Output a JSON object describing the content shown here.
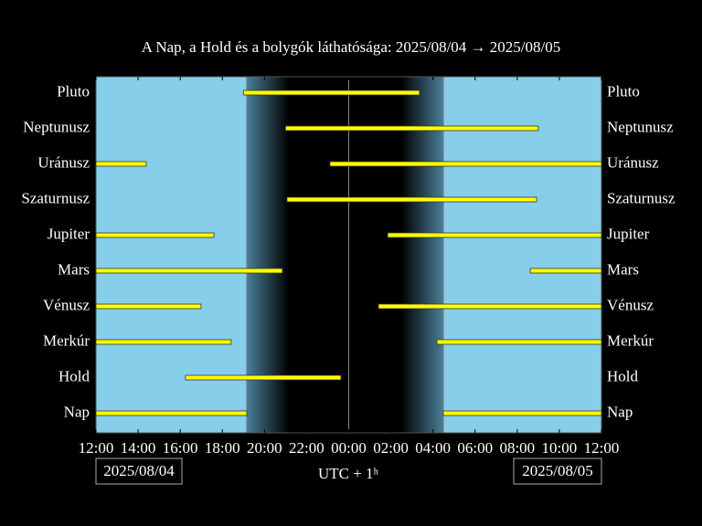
{
  "chart_data": {
    "type": "visibility",
    "title": "A Nap, a Hold és a bolygók láthatósága: 2025/08/04 → 2025/08/05",
    "xlabel": "UTC + 1ʰ",
    "date_left": "2025/08/04",
    "date_right": "2025/08/05",
    "xlim": [
      12,
      36
    ],
    "xticks": [
      {
        "value": 12,
        "label": "12:00"
      },
      {
        "value": 14,
        "label": "14:00"
      },
      {
        "value": 16,
        "label": "16:00"
      },
      {
        "value": 18,
        "label": "18:00"
      },
      {
        "value": 20,
        "label": "20:00"
      },
      {
        "value": 22,
        "label": "22:00"
      },
      {
        "value": 24,
        "label": "00:00"
      },
      {
        "value": 26,
        "label": "02:00"
      },
      {
        "value": 28,
        "label": "04:00"
      },
      {
        "value": 30,
        "label": "06:00"
      },
      {
        "value": 32,
        "label": "08:00"
      },
      {
        "value": 34,
        "label": "10:00"
      },
      {
        "value": 36,
        "label": "12:00"
      }
    ],
    "bar_color": "#ffff00",
    "day_color": "#87ceeb",
    "night_color": "#000000",
    "bodies": [
      {
        "name": "Pluto",
        "segments": [
          [
            19.0,
            27.36
          ]
        ]
      },
      {
        "name": "Neptunusz",
        "segments": [
          [
            21.0,
            33.0
          ]
        ]
      },
      {
        "name": "Uránusz",
        "segments": [
          [
            12,
            14.39
          ],
          [
            23.11,
            36
          ]
        ]
      },
      {
        "name": "Szaturnusz",
        "segments": [
          [
            21.07,
            32.92
          ]
        ]
      },
      {
        "name": "Jupiter",
        "segments": [
          [
            12,
            17.6
          ],
          [
            25.85,
            36
          ]
        ]
      },
      {
        "name": "Mars",
        "segments": [
          [
            12,
            20.85
          ],
          [
            32.62,
            36
          ]
        ]
      },
      {
        "name": "Vénusz",
        "segments": [
          [
            12,
            16.99
          ],
          [
            25.41,
            36
          ]
        ]
      },
      {
        "name": "Merkúr",
        "segments": [
          [
            12,
            18.42
          ],
          [
            28.19,
            36
          ]
        ]
      },
      {
        "name": "Hold",
        "segments": [
          [
            16.25,
            23.63
          ]
        ]
      },
      {
        "name": "Nap",
        "segments": [
          [
            12,
            19.16
          ],
          [
            28.49,
            36
          ]
        ]
      }
    ]
  }
}
